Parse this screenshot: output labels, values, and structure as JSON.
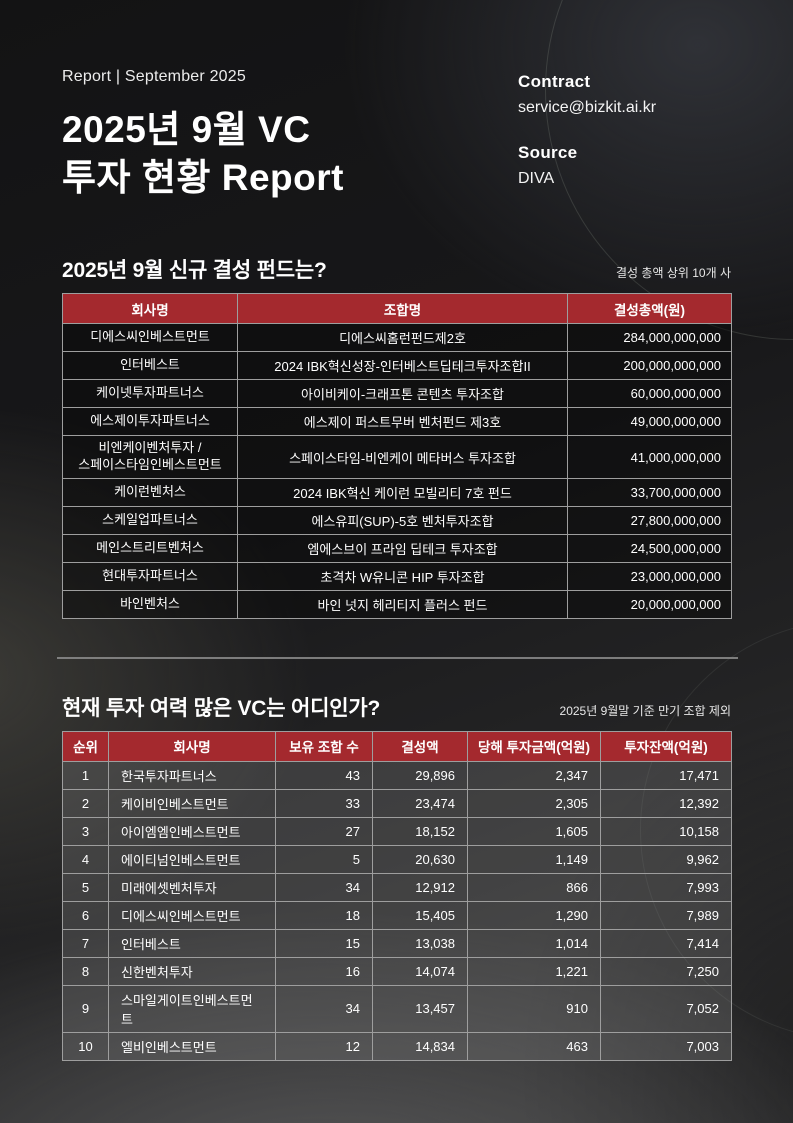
{
  "header": {
    "kicker": "Report | September 2025",
    "title_line1": "2025년 9월 VC",
    "title_line2": "투자 현황 Report",
    "contact": {
      "label": "Contract",
      "value": "service@bizkit.ai.kr"
    },
    "source": {
      "label": "Source",
      "value": "DIVA"
    }
  },
  "section1": {
    "title": "2025년 9월 신규 결성 펀드는?",
    "note": "결성 총액 상위 10개 사",
    "table": {
      "columns": [
        "회사명",
        "조합명",
        "결성총액(원)"
      ],
      "rows": [
        [
          "디에스씨인베스트먼트",
          "디에스씨홈런펀드제2호",
          "284,000,000,000"
        ],
        [
          "인터베스트",
          "2024 IBK혁신성장-인터베스트딥테크투자조합II",
          "200,000,000,000"
        ],
        [
          "케이넷투자파트너스",
          "아이비케이-크래프톤 콘텐츠 투자조합",
          "60,000,000,000"
        ],
        [
          "에스제이투자파트너스",
          "에스제이 퍼스트무버 벤처펀드 제3호",
          "49,000,000,000"
        ],
        [
          "비엔케이벤처투자 /\n스페이스타임인베스트먼트",
          "스페이스타임-비엔케이 메타버스 투자조합",
          "41,000,000,000"
        ],
        [
          "케이런벤처스",
          "2024 IBK혁신 케이런 모빌리티 7호 펀드",
          "33,700,000,000"
        ],
        [
          "스케일업파트너스",
          "에스유피(SUP)-5호 벤처투자조합",
          "27,800,000,000"
        ],
        [
          "메인스트리트벤처스",
          "엠에스브이 프라임 딥테크 투자조합",
          "24,500,000,000"
        ],
        [
          "현대투자파트너스",
          "초격차 W유니콘 HIP 투자조합",
          "23,000,000,000"
        ],
        [
          "바인벤처스",
          "바인 넛지 헤리티지 플러스 펀드",
          "20,000,000,000"
        ]
      ]
    }
  },
  "section2": {
    "title": "현재 투자 여력 많은 VC는 어디인가?",
    "note": "2025년 9월말 기준 만기 조합 제외",
    "table": {
      "columns": [
        "순위",
        "회사명",
        "보유 조합 수",
        "결성액",
        "당해 투자금액(억원)",
        "투자잔액(억원)"
      ],
      "rows": [
        [
          "1",
          "한국투자파트너스",
          "43",
          "29,896",
          "2,347",
          "17,471"
        ],
        [
          "2",
          "케이비인베스트먼트",
          "33",
          "23,474",
          "2,305",
          "12,392"
        ],
        [
          "3",
          "아이엠엠인베스트먼트",
          "27",
          "18,152",
          "1,605",
          "10,158"
        ],
        [
          "4",
          "에이티넘인베스트먼트",
          "5",
          "20,630",
          "1,149",
          "9,962"
        ],
        [
          "5",
          "미래에셋벤처투자",
          "34",
          "12,912",
          "866",
          "7,993"
        ],
        [
          "6",
          "디에스씨인베스트먼트",
          "18",
          "15,405",
          "1,290",
          "7,989"
        ],
        [
          "7",
          "인터베스트",
          "15",
          "13,038",
          "1,014",
          "7,414"
        ],
        [
          "8",
          "신한벤처투자",
          "16",
          "14,074",
          "1,221",
          "7,250"
        ],
        [
          "9",
          "스마일게이트인베스트먼트",
          "34",
          "13,457",
          "910",
          "7,052"
        ],
        [
          "10",
          "엘비인베스트먼트",
          "12",
          "14,834",
          "463",
          "7,003"
        ]
      ]
    }
  },
  "colors": {
    "accent_red": "#a4292e",
    "border_grey": "#9e9e9e",
    "divider_grey": "#8d8d8d",
    "text_white": "#ffffff"
  }
}
